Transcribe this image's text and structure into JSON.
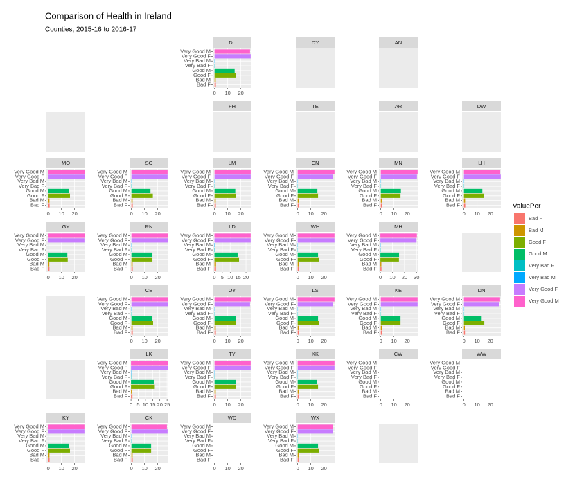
{
  "chart_data": {
    "type": "facet-bar",
    "title": "Comparison of Health in Ireland",
    "subtitle": "Counties, 2015-16 to 2016-17",
    "legend_title": "ValuePer",
    "categories": [
      "Bad F",
      "Bad M",
      "Good F",
      "Good M",
      "Very Bad F",
      "Very Bad M",
      "Very Good F",
      "Very Good M"
    ],
    "colors": [
      "#F8766D",
      "#CD9600",
      "#7CAE00",
      "#00BE67",
      "#00BFC4",
      "#00A9FF",
      "#C77CFF",
      "#FF61CC"
    ],
    "facets": [
      {
        "label": "DL",
        "xlim": [
          -1.4,
          28.1
        ],
        "xticks": [
          0,
          10,
          20
        ],
        "values": [
          1.0,
          0.9,
          16.3,
          15.3,
          0.2,
          0.2,
          27.5,
          27.0
        ]
      },
      {
        "label": "DY"
      },
      {
        "label": "AN"
      },
      {
        "label": "FH"
      },
      {
        "label": "TE"
      },
      {
        "label": "AR"
      },
      {
        "label": "DW"
      },
      {
        "label": "MO",
        "xlim": [
          -1.4,
          28.1
        ],
        "xticks": [
          0,
          10,
          20
        ],
        "values": [
          1.0,
          0.9,
          16.5,
          15.8,
          0.2,
          0.2,
          27.8,
          27.6
        ]
      },
      {
        "label": "SO",
        "xlim": [
          -1.4,
          28.1
        ],
        "xticks": [
          0,
          10,
          20
        ],
        "values": [
          1.0,
          0.9,
          16.3,
          14.5,
          0.2,
          0.2,
          27.5,
          27.5
        ]
      },
      {
        "label": "LM",
        "xlim": [
          -1.4,
          28.1
        ],
        "xticks": [
          0,
          10,
          20
        ],
        "values": [
          1.0,
          0.9,
          16.5,
          15.8,
          0.2,
          0.2,
          27.5,
          27.5
        ]
      },
      {
        "label": "CN",
        "xlim": [
          -1.4,
          28.1
        ],
        "xticks": [
          0,
          10,
          20
        ],
        "values": [
          1.0,
          0.9,
          15.5,
          15.0,
          0.2,
          0.2,
          27.0,
          28.0
        ]
      },
      {
        "label": "MN",
        "xlim": [
          -1.4,
          28.1
        ],
        "xticks": [
          0,
          10,
          20
        ],
        "values": [
          0.9,
          0.8,
          15.0,
          15.3,
          0.2,
          0.2,
          27.5,
          28.0
        ]
      },
      {
        "label": "LH",
        "xlim": [
          -1.4,
          28.1
        ],
        "xticks": [
          0,
          10,
          20
        ],
        "values": [
          1.0,
          0.9,
          15.0,
          14.0,
          0.2,
          0.2,
          28.0,
          27.6
        ]
      },
      {
        "label": "GY",
        "xlim": [
          -1.4,
          28.1
        ],
        "xticks": [
          0,
          10,
          20
        ],
        "values": [
          0.9,
          0.8,
          14.8,
          14.5,
          0.2,
          0.2,
          27.5,
          28.0
        ]
      },
      {
        "label": "RN",
        "xlim": [
          -1.4,
          28.1
        ],
        "xticks": [
          0,
          10,
          20
        ],
        "values": [
          1.0,
          0.9,
          16.0,
          16.0,
          0.2,
          0.2,
          28.0,
          28.0
        ]
      },
      {
        "label": "LD",
        "xlim": [
          -1.1,
          23.5
        ],
        "xticks": [
          0,
          5,
          10,
          15,
          20
        ],
        "values": [
          1.0,
          1.0,
          15.6,
          14.7,
          0.3,
          0.3,
          23.0,
          23.0
        ]
      },
      {
        "label": "WH",
        "xlim": [
          -1.4,
          28.1
        ],
        "xticks": [
          0,
          10,
          20
        ],
        "values": [
          0.9,
          0.8,
          16.0,
          15.5,
          0.2,
          0.2,
          28.0,
          28.0
        ]
      },
      {
        "label": "MH",
        "xlim": [
          -1.2,
          31.0
        ],
        "xticks": [
          0,
          10,
          20,
          30
        ],
        "values": [
          0.9,
          0.8,
          15.4,
          15.5,
          0.2,
          0.2,
          30.0,
          30.3
        ]
      },
      {
        "label": "CE",
        "xlim": [
          -1.4,
          28.1
        ],
        "xticks": [
          0,
          10,
          20
        ],
        "values": [
          1.0,
          0.9,
          16.5,
          16.0,
          0.2,
          0.2,
          28.0,
          28.0
        ]
      },
      {
        "label": "OY",
        "xlim": [
          -1.4,
          28.1
        ],
        "xticks": [
          0,
          10,
          20
        ],
        "values": [
          1.0,
          0.9,
          16.0,
          16.0,
          0.2,
          0.2,
          27.0,
          27.5
        ]
      },
      {
        "label": "LS",
        "xlim": [
          -1.4,
          28.1
        ],
        "xticks": [
          0,
          10,
          20
        ],
        "values": [
          1.0,
          0.9,
          16.0,
          15.5,
          0.2,
          0.2,
          27.0,
          28.0
        ]
      },
      {
        "label": "KE",
        "xlim": [
          -1.4,
          28.1
        ],
        "xticks": [
          0,
          10,
          20
        ],
        "values": [
          0.8,
          0.7,
          15.0,
          15.0,
          0.2,
          0.2,
          28.0,
          28.0
        ]
      },
      {
        "label": "DN",
        "xlim": [
          -1.4,
          28.1
        ],
        "xticks": [
          0,
          10,
          20
        ],
        "values": [
          0.8,
          0.7,
          15.5,
          13.5,
          0.2,
          0.2,
          27.0,
          27.5
        ]
      },
      {
        "label": "LK",
        "xlim": [
          -1.0,
          25.9
        ],
        "xticks": [
          0,
          5,
          10,
          15,
          20,
          25
        ],
        "values": [
          1.0,
          0.9,
          16.5,
          15.8,
          0.2,
          0.2,
          25.5,
          25.5
        ]
      },
      {
        "label": "TY",
        "xlim": [
          -1.4,
          28.1
        ],
        "xticks": [
          0,
          10,
          20
        ],
        "values": [
          1.0,
          0.9,
          16.5,
          16.0,
          0.2,
          0.2,
          27.5,
          27.5
        ]
      },
      {
        "label": "KK",
        "xlim": [
          -1.4,
          28.1
        ],
        "xticks": [
          0,
          10,
          20
        ],
        "values": [
          0.9,
          0.8,
          15.5,
          14.5,
          0.2,
          0.2,
          28.0,
          28.0
        ]
      },
      {
        "label": "CW",
        "xlim": [
          -1.4,
          28.1
        ],
        "xticks": [
          0,
          10,
          20
        ]
      },
      {
        "label": "WW",
        "xlim": [
          -1.4,
          28.1
        ],
        "xticks": [
          0,
          10,
          20
        ]
      },
      {
        "label": "KY",
        "xlim": [
          -1.4,
          28.1
        ],
        "xticks": [
          0,
          10,
          20
        ],
        "values": [
          1.0,
          0.9,
          16.5,
          15.5,
          0.2,
          0.2,
          27.5,
          27.5
        ]
      },
      {
        "label": "CK",
        "xlim": [
          -1.4,
          28.1
        ],
        "xticks": [
          0,
          10,
          20
        ],
        "values": [
          1.0,
          0.9,
          15.0,
          15.0,
          0.2,
          0.2,
          27.5,
          27.0
        ]
      },
      {
        "label": "WD",
        "xlim": [
          -1.4,
          28.1
        ],
        "xticks": [
          0,
          10,
          20
        ]
      },
      {
        "label": "WX",
        "xlim": [
          -1.4,
          28.1
        ],
        "xticks": [
          0,
          10,
          20
        ],
        "values": [
          1.0,
          0.9,
          16.0,
          15.5,
          0.2,
          0.2,
          27.0,
          27.0
        ]
      }
    ]
  }
}
